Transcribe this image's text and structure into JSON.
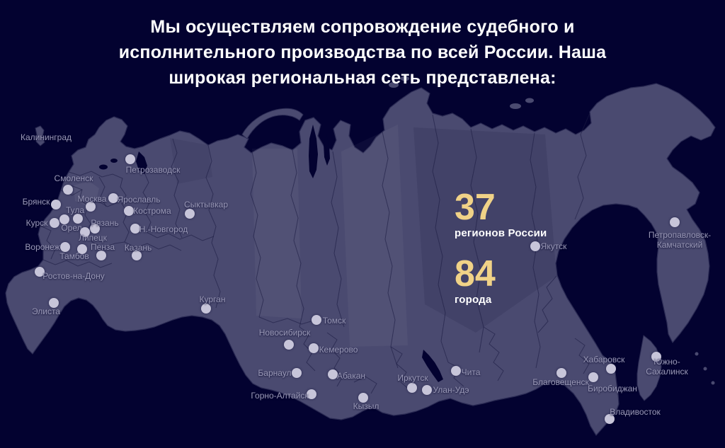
{
  "header": {
    "lines": [
      "Мы осуществляем сопровождение судебного и",
      "исполнительного производства по всей России. Наша",
      "широкая региональная сеть представлена:"
    ]
  },
  "stats": [
    {
      "value": "37",
      "label": "регионов России"
    },
    {
      "value": "84",
      "label": "города"
    }
  ],
  "colors": {
    "background": "#030230",
    "map_fill": "#4a4a70",
    "map_stroke": "#2b2b54",
    "dot_fill": "#c7c5d9",
    "city_label": "#9a99b6",
    "accent_gold": "#f0d287",
    "heading_text": "#ffffff"
  },
  "map": {
    "cities": [
      {
        "name": "Калининград",
        "label": [
          65,
          194
        ]
      },
      {
        "name": "Петрозаводск",
        "dot": [
          184,
          225
        ],
        "label": [
          216,
          240
        ]
      },
      {
        "name": "Смоленск",
        "dot": [
          96,
          268
        ],
        "label": [
          104,
          252
        ]
      },
      {
        "name": "Брянск",
        "dot": [
          79,
          289
        ],
        "label": [
          51,
          285
        ]
      },
      {
        "name": "Москва",
        "dot": [
          128,
          292
        ],
        "label": [
          130,
          281
        ]
      },
      {
        "name": "Ярославль",
        "dot": [
          160,
          280
        ],
        "label": [
          196,
          282
        ]
      },
      {
        "name": "Кострома",
        "dot": [
          182,
          298
        ],
        "label": [
          215,
          298
        ]
      },
      {
        "name": "Сыктывкар",
        "dot": [
          268,
          302
        ],
        "label": [
          291,
          289
        ]
      },
      {
        "name": "Тула",
        "dot": [
          110,
          309
        ],
        "label": [
          106,
          297
        ]
      },
      {
        "name": "Курск",
        "dot": [
          77,
          315
        ],
        "label": [
          52,
          315
        ]
      },
      {
        "name": "Орел",
        "dot": [
          91,
          310
        ],
        "label": [
          101,
          322
        ]
      },
      {
        "name": "Рязань",
        "dot": [
          134,
          323
        ],
        "label": [
          148,
          315
        ]
      },
      {
        "name": "Липецк",
        "dot": [
          120,
          328
        ],
        "label": [
          131,
          336
        ]
      },
      {
        "name": "Н.-Новгород",
        "dot": [
          191,
          323
        ],
        "label": [
          231,
          324
        ]
      },
      {
        "name": "Воронеж",
        "dot": [
          92,
          349
        ],
        "label": [
          60,
          349
        ]
      },
      {
        "name": "Тамбов",
        "dot": [
          116,
          352
        ],
        "label": [
          105,
          362
        ]
      },
      {
        "name": "Пенза",
        "dot": [
          143,
          361
        ],
        "label": [
          145,
          349
        ]
      },
      {
        "name": "Казань",
        "dot": [
          193,
          361
        ],
        "label": [
          195,
          350
        ]
      },
      {
        "name": "Ростов-на-Дону",
        "dot": [
          56,
          384
        ],
        "label": [
          104,
          390
        ]
      },
      {
        "name": "Элиста",
        "dot": [
          76,
          428
        ],
        "label": [
          65,
          440
        ]
      },
      {
        "name": "Курган",
        "dot": [
          291,
          436
        ],
        "label": [
          300,
          423
        ]
      },
      {
        "name": "Томск",
        "dot": [
          447,
          452
        ],
        "label": [
          472,
          453
        ]
      },
      {
        "name": "Новосибирск",
        "dot": [
          408,
          487
        ],
        "label": [
          402,
          470
        ]
      },
      {
        "name": "Кемерово",
        "dot": [
          443,
          492
        ],
        "label": [
          478,
          494
        ]
      },
      {
        "name": "Барнаул",
        "dot": [
          419,
          527
        ],
        "label": [
          388,
          527
        ]
      },
      {
        "name": "Абакан",
        "dot": [
          470,
          529
        ],
        "label": [
          496,
          531
        ]
      },
      {
        "name": "Горно-Алтайск",
        "dot": [
          440,
          557
        ],
        "label": [
          395,
          559
        ]
      },
      {
        "name": "Кызыл",
        "dot": [
          513,
          562
        ],
        "label": [
          517,
          574
        ]
      },
      {
        "name": "Иркутск",
        "dot": [
          582,
          548
        ],
        "label": [
          583,
          534
        ]
      },
      {
        "name": "Улан-Удэ",
        "dot": [
          603,
          551
        ],
        "label": [
          637,
          551
        ]
      },
      {
        "name": "Чита",
        "dot": [
          644,
          524
        ],
        "label": [
          665,
          526
        ]
      },
      {
        "name": "Якутск",
        "dot": [
          756,
          348
        ],
        "label": [
          782,
          348
        ]
      },
      {
        "name": "Петропавловск-\nКамчатский",
        "dot": [
          953,
          314
        ],
        "label": [
          960,
          339
        ]
      },
      {
        "name": "Благовещенск",
        "dot": [
          793,
          527
        ],
        "label": [
          792,
          540
        ]
      },
      {
        "name": "Хабаровск",
        "dot": [
          863,
          521
        ],
        "label": [
          853,
          508
        ]
      },
      {
        "name": "Южно-Сахалинск",
        "dot": [
          927,
          504
        ],
        "label": [
          942,
          518
        ]
      },
      {
        "name": "Биробиджан",
        "dot": [
          838,
          533
        ],
        "label": [
          865,
          549
        ]
      },
      {
        "name": "Владивосток",
        "dot": [
          861,
          592
        ],
        "label": [
          897,
          582
        ]
      }
    ]
  }
}
